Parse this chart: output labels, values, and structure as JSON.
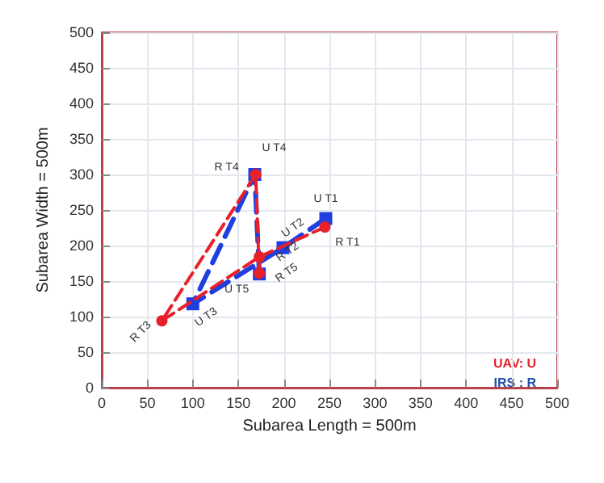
{
  "chart_data": {
    "type": "line",
    "xlabel": "Subarea Length = 500m",
    "ylabel": "Subarea Width = 500m",
    "xlim": [
      0,
      500
    ],
    "xticks": [
      0,
      50,
      100,
      150,
      200,
      250,
      300,
      350,
      400,
      450,
      500
    ],
    "ylim": [
      0,
      500
    ],
    "yticks": [
      0,
      50,
      100,
      150,
      200,
      250,
      300,
      350,
      400,
      450,
      500
    ],
    "grid": true,
    "line_style": "dashed",
    "series": [
      {
        "color": "#1f3fe0",
        "marker": "square",
        "x": [
          246,
          199,
          100,
          168,
          173
        ],
        "values": [
          238,
          197,
          118,
          300,
          160
        ],
        "value_labels": [
          "U T1",
          "U T2",
          "U T3",
          "U T4",
          "U T5"
        ]
      },
      {
        "color": "#e8202a",
        "marker": "circle",
        "x": [
          245,
          173,
          66,
          169,
          173
        ],
        "values": [
          226,
          184,
          94,
          300,
          161
        ],
        "value_labels": [
          "R T1",
          "R T2",
          "R T3",
          "R T4",
          "R T5"
        ]
      }
    ],
    "annotations": [
      "UAV: U",
      "IRS : R"
    ]
  }
}
